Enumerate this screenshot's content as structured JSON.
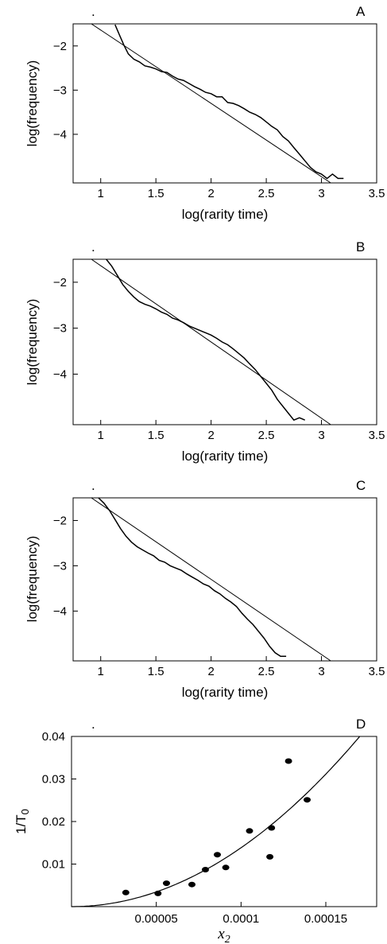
{
  "chart_data": [
    {
      "type": "line",
      "panel_label": "A",
      "corner_mark": ".",
      "xlabel": "log(rarity time)",
      "ylabel": "log(frequency)",
      "xlim": [
        0.75,
        3.5
      ],
      "ylim": [
        -5.1,
        -1.5
      ],
      "x_ticks": [
        1,
        1.5,
        2,
        2.5,
        3,
        3.5
      ],
      "x_tick_labels": [
        "1",
        "1.5",
        "2",
        "2.5",
        "3",
        "3.5"
      ],
      "y_ticks": [
        -2,
        -3,
        -4
      ],
      "y_tick_labels": [
        "−2",
        "−3",
        "−4"
      ],
      "fit_line": {
        "intercept": 0.02,
        "slope": -1.66
      },
      "empirical": {
        "x": [
          1.13,
          1.17,
          1.21,
          1.25,
          1.3,
          1.35,
          1.4,
          1.45,
          1.5,
          1.55,
          1.6,
          1.65,
          1.7,
          1.75,
          1.8,
          1.85,
          1.9,
          1.95,
          2.0,
          2.05,
          2.1,
          2.15,
          2.2,
          2.25,
          2.3,
          2.35,
          2.4,
          2.45,
          2.5,
          2.55,
          2.6,
          2.65,
          2.7,
          2.75,
          2.8,
          2.85,
          2.9,
          2.95,
          3.0,
          3.05,
          3.1,
          3.15,
          3.2
        ],
        "y": [
          -1.52,
          -1.75,
          -1.98,
          -2.18,
          -2.3,
          -2.36,
          -2.45,
          -2.48,
          -2.52,
          -2.58,
          -2.6,
          -2.68,
          -2.75,
          -2.78,
          -2.85,
          -2.92,
          -2.98,
          -3.05,
          -3.08,
          -3.15,
          -3.15,
          -3.28,
          -3.3,
          -3.35,
          -3.42,
          -3.5,
          -3.55,
          -3.62,
          -3.72,
          -3.82,
          -3.9,
          -4.05,
          -4.15,
          -4.3,
          -4.45,
          -4.6,
          -4.75,
          -4.85,
          -4.9,
          -5.0,
          -4.9,
          -5.0,
          -5.0
        ]
      }
    },
    {
      "type": "line",
      "panel_label": "B",
      "corner_mark": ".",
      "xlabel": "log(rarity time)",
      "ylabel": "log(frequency)",
      "xlim": [
        0.75,
        3.5
      ],
      "ylim": [
        -5.1,
        -1.5
      ],
      "x_ticks": [
        1,
        1.5,
        2,
        2.5,
        3,
        3.5
      ],
      "x_tick_labels": [
        "1",
        "1.5",
        "2",
        "2.5",
        "3",
        "3.5"
      ],
      "y_ticks": [
        -2,
        -3,
        -4
      ],
      "y_tick_labels": [
        "−2",
        "−3",
        "−4"
      ],
      "fit_line": {
        "intercept": 0.02,
        "slope": -1.66
      },
      "empirical": {
        "x": [
          1.05,
          1.1,
          1.15,
          1.2,
          1.25,
          1.3,
          1.35,
          1.4,
          1.45,
          1.5,
          1.55,
          1.6,
          1.65,
          1.7,
          1.75,
          1.8,
          1.85,
          1.9,
          1.95,
          2.0,
          2.05,
          2.1,
          2.15,
          2.2,
          2.25,
          2.3,
          2.35,
          2.4,
          2.45,
          2.5,
          2.55,
          2.6,
          2.65,
          2.7,
          2.75,
          2.8,
          2.85
        ],
        "y": [
          -1.5,
          -1.65,
          -1.85,
          -2.05,
          -2.2,
          -2.32,
          -2.42,
          -2.48,
          -2.52,
          -2.58,
          -2.65,
          -2.7,
          -2.78,
          -2.82,
          -2.88,
          -2.95,
          -3.0,
          -3.05,
          -3.1,
          -3.15,
          -3.22,
          -3.3,
          -3.36,
          -3.45,
          -3.55,
          -3.65,
          -3.78,
          -3.9,
          -4.05,
          -4.2,
          -4.35,
          -4.55,
          -4.7,
          -4.85,
          -5.0,
          -4.95,
          -5.0
        ]
      }
    },
    {
      "type": "line",
      "panel_label": "C",
      "corner_mark": ".",
      "xlabel": "log(rarity time)",
      "ylabel": "log(frequency)",
      "xlim": [
        0.75,
        3.5
      ],
      "ylim": [
        -5.1,
        -1.5
      ],
      "x_ticks": [
        1,
        1.5,
        2,
        2.5,
        3,
        3.5
      ],
      "x_tick_labels": [
        "1",
        "1.5",
        "2",
        "2.5",
        "3",
        "3.5"
      ],
      "y_ticks": [
        -2,
        -3,
        -4
      ],
      "y_tick_labels": [
        "−2",
        "−3",
        "−4"
      ],
      "fit_line": {
        "intercept": 0.02,
        "slope": -1.66
      },
      "empirical": {
        "x": [
          0.98,
          1.03,
          1.08,
          1.13,
          1.18,
          1.23,
          1.28,
          1.33,
          1.38,
          1.43,
          1.48,
          1.53,
          1.58,
          1.63,
          1.68,
          1.73,
          1.78,
          1.83,
          1.88,
          1.93,
          1.98,
          2.03,
          2.08,
          2.13,
          2.18,
          2.23,
          2.28,
          2.33,
          2.38,
          2.43,
          2.48,
          2.53,
          2.58,
          2.63,
          2.68
        ],
        "y": [
          -1.5,
          -1.62,
          -1.78,
          -1.98,
          -2.18,
          -2.35,
          -2.48,
          -2.58,
          -2.65,
          -2.72,
          -2.78,
          -2.88,
          -2.92,
          -3.0,
          -3.05,
          -3.1,
          -3.18,
          -3.25,
          -3.32,
          -3.4,
          -3.45,
          -3.55,
          -3.62,
          -3.72,
          -3.8,
          -3.9,
          -4.05,
          -4.18,
          -4.3,
          -4.45,
          -4.6,
          -4.78,
          -4.92,
          -5.0,
          -5.0
        ]
      }
    },
    {
      "type": "scatter",
      "panel_label": "D",
      "corner_mark": ".",
      "xlabel": "x",
      "xlabel_sub": "2",
      "ylabel": "1/T",
      "ylabel_sub": "0",
      "xlim": [
        0,
        0.00018
      ],
      "ylim": [
        0,
        0.04
      ],
      "x_ticks": [
        5e-05,
        0.0001,
        0.00015
      ],
      "x_tick_labels": [
        "0.00005",
        "0.0001",
        "0.00015"
      ],
      "y_ticks": [
        0.01,
        0.02,
        0.03,
        0.04
      ],
      "y_tick_labels": [
        "0.01",
        "0.02",
        "0.03",
        "0.04"
      ],
      "curve": {
        "type": "power",
        "coefficient": 0.04,
        "x_ref": 0.00017,
        "exponent": 2
      },
      "points": {
        "x": [
          3.2e-05,
          5.1e-05,
          5.6e-05,
          7.1e-05,
          7.9e-05,
          8.6e-05,
          9.1e-05,
          0.000105,
          0.000117,
          0.000118,
          0.000128,
          0.000139
        ],
        "y": [
          0.0033,
          0.0031,
          0.0055,
          0.0052,
          0.0087,
          0.0122,
          0.0092,
          0.0178,
          0.0117,
          0.0185,
          0.0342,
          0.0251
        ]
      }
    }
  ]
}
